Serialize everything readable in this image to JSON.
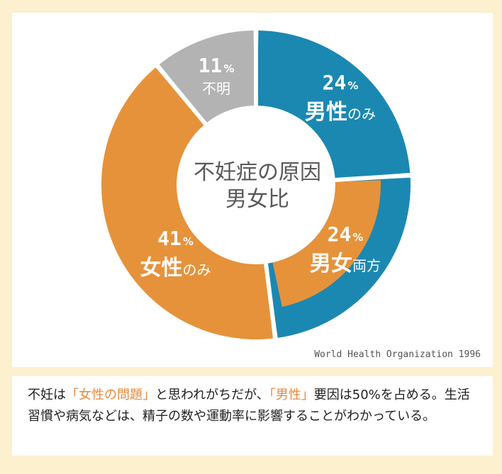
{
  "chart_data": {
    "type": "pie",
    "title": "不妊症の原因\n男女比",
    "title_line1": "不妊症の原因",
    "title_line2": "男女比",
    "slices": [
      {
        "key": "male",
        "value": 24,
        "pct_label": "24",
        "label_main": "男性",
        "label_sub": "のみ",
        "color": "#1b88b2"
      },
      {
        "key": "both",
        "value": 24,
        "pct_label": "24",
        "label_main": "男女",
        "label_sub": "両方",
        "color": "#e6923a"
      },
      {
        "key": "female",
        "value": 41,
        "pct_label": "41",
        "label_main": "女性",
        "label_sub": "のみ",
        "color": "#e6923a",
        "outline_color": "#1b88b2"
      },
      {
        "key": "unknown",
        "value": 11,
        "pct_label": "11",
        "label_main": "不明",
        "label_sub": "",
        "color": "#b3b3b3"
      }
    ],
    "pct_sign": "%",
    "source": "World Health Organization 1996"
  },
  "caption": {
    "part1": "不妊は",
    "highlight1": "「女性の問題」",
    "part2": "と思われがちだが、",
    "highlight2": "「男性」",
    "part3": "要因は50%を占める。生活習慣や病気などは、精子の数や運動率に影響することがわかっている。"
  },
  "colors": {
    "background": "#fdf0cf",
    "highlight": "#e8883a",
    "blue": "#1b88b2",
    "orange": "#e6923a",
    "gray": "#b3b3b3"
  }
}
